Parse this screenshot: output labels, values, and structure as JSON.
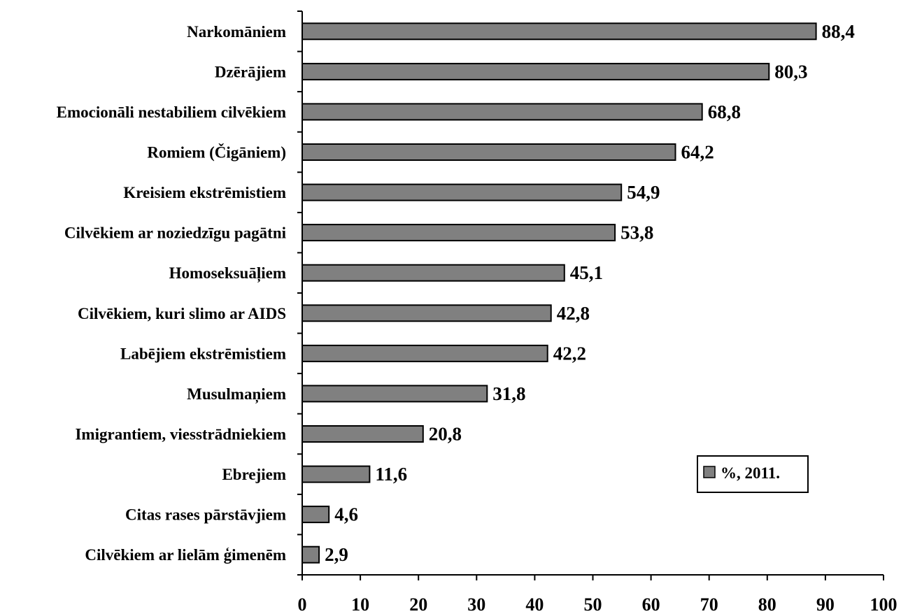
{
  "chart_data": {
    "type": "bar",
    "orientation": "horizontal",
    "categories": [
      "Narkomāniem",
      "Dzērājiem",
      "Emocionāli nestabiliem cilvēkiem",
      "Romiem (Čigāniem)",
      "Kreisiem ekstrēmistiem",
      "Cilvēkiem ar noziedzīgu pagātni",
      "Homoseksuāļiem",
      "Cilvēkiem, kuri slimo ar AIDS",
      "Labējiem ekstrēmistiem",
      "Musulmaņiem",
      "Imigrantiem, viesstrādniekiem",
      "Ebrejiem",
      "Citas rases pārstāvjiem",
      "Cilvēkiem ar lielām ģimenēm"
    ],
    "series": [
      {
        "name": "%, 2011.",
        "values": [
          88.4,
          80.3,
          68.8,
          64.2,
          54.9,
          53.8,
          45.1,
          42.8,
          42.2,
          31.8,
          20.8,
          11.6,
          4.6,
          2.9
        ],
        "labels": [
          "88,4",
          "80,3",
          "68,8",
          "64,2",
          "54,9",
          "53,8",
          "45,1",
          "42,8",
          "42,2",
          "31,8",
          "20,8",
          "11,6",
          "4,6",
          "2,9"
        ]
      }
    ],
    "xlim": [
      0,
      100
    ],
    "xticks": [
      "0",
      "10",
      "20",
      "30",
      "40",
      "50",
      "60",
      "70",
      "80",
      "90",
      "100"
    ],
    "title": "",
    "xlabel": "",
    "ylabel": "",
    "grid": false,
    "legend_position": "bottom-right",
    "bar_color": "#808080",
    "bar_stroke": "#000000"
  }
}
